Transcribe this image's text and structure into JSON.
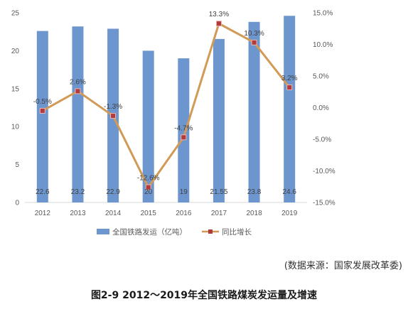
{
  "chart_data": {
    "type": "bar",
    "categories": [
      "2012",
      "2013",
      "2014",
      "2015",
      "2016",
      "2017",
      "2018",
      "2019"
    ],
    "series": [
      {
        "name": "全国铁路发运（亿吨）",
        "type": "bar",
        "axis": "left",
        "values": [
          22.6,
          23.2,
          22.9,
          20,
          19,
          21.55,
          23.8,
          24.6
        ],
        "labels": [
          "22.6",
          "23.2",
          "22.9",
          "20",
          "19",
          "21.55",
          "23.8",
          "24.6"
        ],
        "color": "#6d96ce"
      },
      {
        "name": "同比增长",
        "type": "line",
        "axis": "right",
        "values": [
          -0.5,
          2.6,
          -1.3,
          -12.6,
          -4.7,
          13.3,
          10.3,
          3.2
        ],
        "labels": [
          "-0.5%",
          "2.6%",
          "-1.3%",
          "-12.6%",
          "-4.7%",
          "13.3%",
          "10.3%",
          "3.2%"
        ],
        "color": "#d19a56",
        "marker_color": "#b23a3a"
      }
    ],
    "y_left": {
      "ylim": [
        0,
        25
      ],
      "ticks": [
        0,
        5,
        10,
        15,
        20,
        25
      ],
      "tick_labels": [
        "0",
        "5",
        "10",
        "15",
        "20",
        "25"
      ]
    },
    "y_right": {
      "ylim": [
        -15,
        15
      ],
      "ticks": [
        -15,
        -10,
        -5,
        0,
        5,
        10,
        15
      ],
      "tick_labels": [
        "-15.0%",
        "-10.0%",
        "-5.0%",
        "0.0%",
        "5.0%",
        "10.0%",
        "15.0%"
      ]
    },
    "grid": false,
    "legend": "bottom"
  },
  "source_note": "(数据来源：国家发展改革委)",
  "caption": "图2-9  2012～2019年全国铁路煤炭发运量及增速"
}
